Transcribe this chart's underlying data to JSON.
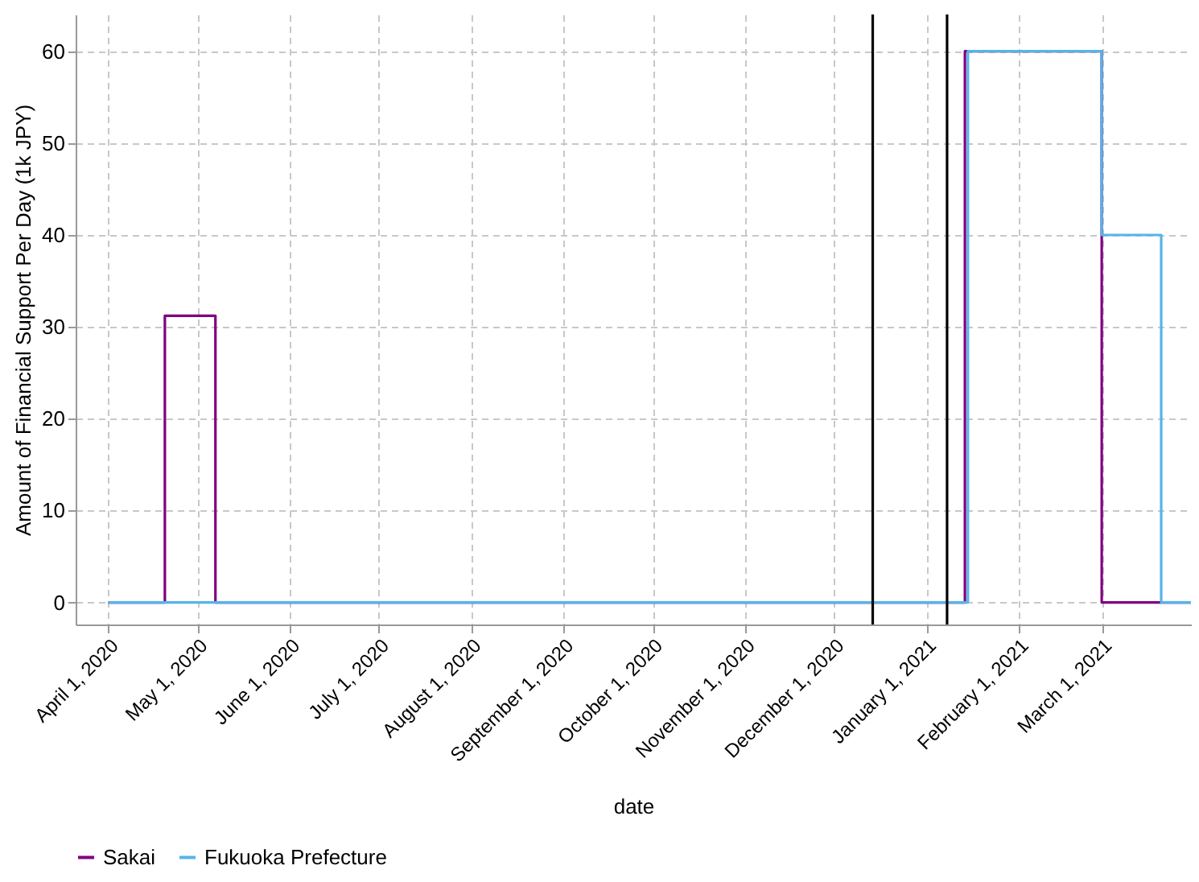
{
  "chart_data": {
    "type": "step",
    "xlabel": "date",
    "ylabel": "Amount of Financial Support Per Day (1k JPY)",
    "series": [
      {
        "name": "Sakai",
        "color": "#800080",
        "x": [
          "2020-04-01",
          "2020-04-20",
          "2020-05-07",
          "2021-01-14",
          "2021-03-01",
          "2021-03-31"
        ],
        "values": [
          0,
          31.2,
          0,
          60,
          0,
          0
        ]
      },
      {
        "name": "Fukuoka Prefecture",
        "color": "#56b4e9",
        "x": [
          "2020-04-01",
          "2021-01-15",
          "2021-03-01",
          "2021-03-21",
          "2021-03-31"
        ],
        "values": [
          0,
          60,
          40,
          0,
          0
        ]
      }
    ],
    "xlim": [
      "2020-03-21",
      "2021-03-31"
    ],
    "xticks": [
      {
        "value": "2020-04-01",
        "label": "April 1, 2020"
      },
      {
        "value": "2020-05-01",
        "label": "May 1, 2020"
      },
      {
        "value": "2020-06-01",
        "label": "June 1, 2020"
      },
      {
        "value": "2020-07-01",
        "label": "July 1, 2020"
      },
      {
        "value": "2020-08-01",
        "label": "August 1, 2020"
      },
      {
        "value": "2020-09-01",
        "label": "September 1, 2020"
      },
      {
        "value": "2020-10-01",
        "label": "October 1, 2020"
      },
      {
        "value": "2020-11-01",
        "label": "November 1, 2020"
      },
      {
        "value": "2020-12-01",
        "label": "December 1, 2020"
      },
      {
        "value": "2021-01-01",
        "label": "January 1, 2021"
      },
      {
        "value": "2021-02-01",
        "label": "February 1, 2021"
      },
      {
        "value": "2021-03-01",
        "label": "March 1, 2021"
      }
    ],
    "ylim": [
      -2.4,
      64
    ],
    "yticks": [
      0,
      10,
      20,
      30,
      40,
      50,
      60
    ],
    "ref_lines": [
      {
        "axis": "x",
        "value": "2020-12-14",
        "color": "#000000"
      },
      {
        "axis": "x",
        "value": "2021-01-08",
        "color": "#000000"
      }
    ],
    "grid": true,
    "legend": "bottom",
    "line_style": "solid"
  }
}
